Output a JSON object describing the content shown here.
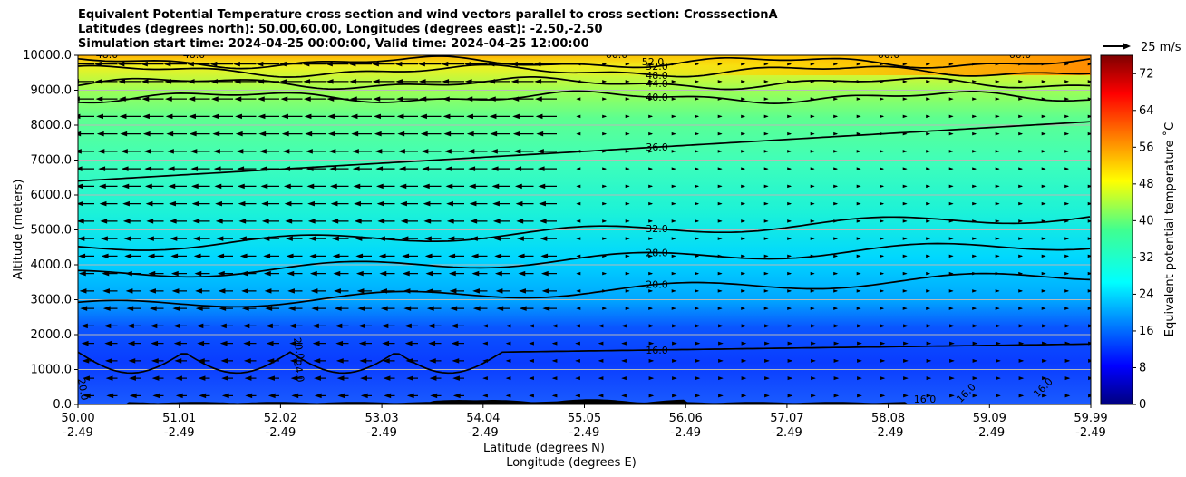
{
  "chart_data": {
    "type": "contour",
    "title_lines": [
      "Equivalent Potential Temperature cross section and wind vectors parallel to cross section: CrosssectionA",
      "Latitudes (degrees north): 50.00,60.00, Longitudes (degrees east): -2.50,-2.50",
      "Simulation start time: 2024-04-25 00:00:00, Valid time: 2024-04-25 12:00:00"
    ],
    "ylabel": "Altitude (meters)",
    "xlabel_lines": [
      "Latitude (degrees N)",
      "Longitude (degrees E)"
    ],
    "ylim": [
      0,
      10000
    ],
    "y_ticks": [
      "0.0",
      "1000.0",
      "2000.0",
      "3000.0",
      "4000.0",
      "5000.0",
      "6000.0",
      "7000.0",
      "8000.0",
      "9000.0",
      "10000.0"
    ],
    "x_ticks": [
      {
        "lat": "50.00",
        "lon": "-2.49"
      },
      {
        "lat": "51.01",
        "lon": "-2.49"
      },
      {
        "lat": "52.02",
        "lon": "-2.49"
      },
      {
        "lat": "53.03",
        "lon": "-2.49"
      },
      {
        "lat": "54.04",
        "lon": "-2.49"
      },
      {
        "lat": "55.05",
        "lon": "-2.49"
      },
      {
        "lat": "56.06",
        "lon": "-2.49"
      },
      {
        "lat": "57.07",
        "lon": "-2.49"
      },
      {
        "lat": "58.08",
        "lon": "-2.49"
      },
      {
        "lat": "59.09",
        "lon": "-2.49"
      },
      {
        "lat": "59.99",
        "lon": "-2.49"
      }
    ],
    "grid": "horizontal",
    "colorbar": {
      "label": "Equivalent potential temperature ˚C",
      "min": 0,
      "max": 76,
      "ticks": [
        "0",
        "8",
        "16",
        "24",
        "32",
        "40",
        "48",
        "56",
        "64",
        "72"
      ],
      "colormap": "jet"
    },
    "quiver_key": "25 m/s",
    "contours": [
      {
        "level": "16.0",
        "label_x_frac": 0.5,
        "base_alt": 1500
      },
      {
        "level": "20.0",
        "label_x_frac": 0.5,
        "base_alt": 3300
      },
      {
        "level": "28.0",
        "label_x_frac": 0.5,
        "base_alt": 4200
      },
      {
        "level": "32.0",
        "label_x_frac": 0.5,
        "base_alt": 5000
      },
      {
        "level": "36.0",
        "label_x_frac": 0.5,
        "base_alt": 7600
      },
      {
        "level": "40.0",
        "label_x_frac": 0.5,
        "base_alt": 8800
      },
      {
        "level": "44.0",
        "label_x_frac": 0.5,
        "base_alt": 9200
      },
      {
        "level": "48.0",
        "label_x_frac": 0.5,
        "base_alt": 9550
      },
      {
        "level": "52.0",
        "label_x_frac": 0.5,
        "base_alt": 9800
      }
    ],
    "extra_contour_labels": [
      "20.0",
      "24.0",
      "20.0",
      "16.0",
      "16.0",
      "16.0",
      "48.0",
      "48.0",
      "60.0",
      "60.0",
      "60.0",
      "52.0"
    ]
  }
}
